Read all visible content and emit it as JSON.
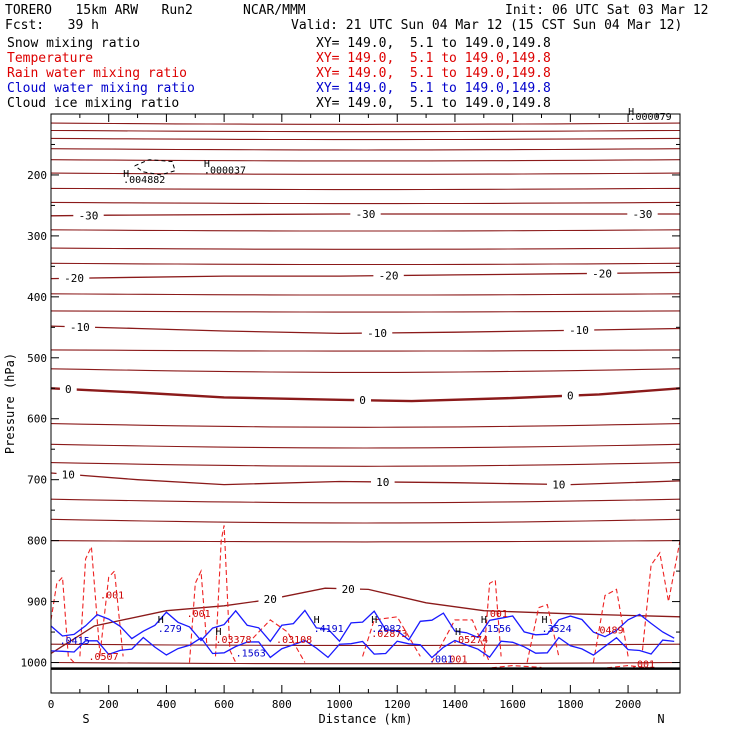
{
  "header": {
    "model": "TORERO   15km ARW   Run2",
    "org": "NCAR/MMM",
    "init": "Init: 06 UTC Sat 03 Mar 12",
    "fcst": "Fcst:   39 h",
    "valid": "Valid: 21 UTC Sun 04 Mar 12 (15 CST Sun 04 Mar 12)"
  },
  "fields": [
    {
      "name": "Snow mixing ratio",
      "xy": "XY= 149.0,  5.1 to 149.0,149.8",
      "color": "#000000"
    },
    {
      "name": "Temperature",
      "xy": "XY= 149.0,  5.1 to 149.0,149.8",
      "color": "#dd0000"
    },
    {
      "name": "Rain water mixing ratio",
      "xy": "XY= 149.0,  5.1 to 149.0,149.8",
      "color": "#dd0000"
    },
    {
      "name": "Cloud water mixing ratio",
      "xy": "XY= 149.0,  5.1 to 149.0,149.8",
      "color": "#0000cc"
    },
    {
      "name": "Cloud ice mixing ratio",
      "xy": "XY= 149.0,  5.1 to 149.0,149.8",
      "color": "#000000"
    }
  ],
  "chart_data": {
    "type": "contour",
    "xlabel": "Distance (km)",
    "ylabel": "Pressure (hPa)",
    "xlim": [
      0,
      2180
    ],
    "ylim": [
      1050,
      100
    ],
    "x_ticks": [
      0,
      200,
      400,
      600,
      800,
      1000,
      1200,
      1400,
      1600,
      1800,
      2000
    ],
    "y_ticks": [
      200,
      300,
      400,
      500,
      600,
      700,
      800,
      900,
      1000
    ],
    "end_labels": {
      "left": "S",
      "right": "N"
    },
    "temperature_contours": [
      {
        "value": -30,
        "label": "-30",
        "label_x": [
          130,
          1090,
          2050
        ],
        "p": [
          [
            0,
            267
          ],
          [
            200,
            266
          ],
          [
            600,
            265
          ],
          [
            1000,
            264
          ],
          [
            1400,
            264
          ],
          [
            1800,
            264
          ],
          [
            2180,
            264
          ]
        ]
      },
      {
        "value": -20,
        "label": "-20",
        "label_x": [
          80,
          1170,
          1910
        ],
        "p": [
          [
            0,
            370
          ],
          [
            300,
            368
          ],
          [
            600,
            366
          ],
          [
            1000,
            366
          ],
          [
            1400,
            364
          ],
          [
            1800,
            362
          ],
          [
            2180,
            360
          ]
        ]
      },
      {
        "value": -10,
        "label": "-10",
        "label_x": [
          100,
          1130,
          1830
        ],
        "p": [
          [
            0,
            448
          ],
          [
            300,
            452
          ],
          [
            600,
            456
          ],
          [
            1000,
            460
          ],
          [
            1400,
            458
          ],
          [
            1800,
            455
          ],
          [
            2180,
            452
          ]
        ]
      },
      {
        "value": 0,
        "label": "0",
        "label_x": [
          60,
          1080,
          1800
        ],
        "p": [
          [
            0,
            550
          ],
          [
            300,
            557
          ],
          [
            600,
            565
          ],
          [
            1000,
            569
          ],
          [
            1250,
            571
          ],
          [
            1600,
            566
          ],
          [
            1900,
            560
          ],
          [
            2180,
            550
          ]
        ]
      },
      {
        "value": 10,
        "label": "10",
        "label_x": [
          60,
          1150,
          1760
        ],
        "p": [
          [
            0,
            689
          ],
          [
            300,
            700
          ],
          [
            600,
            708
          ],
          [
            1000,
            703
          ],
          [
            1400,
            705
          ],
          [
            1800,
            708
          ],
          [
            2180,
            702
          ]
        ]
      },
      {
        "value": 20,
        "label": "20",
        "label_x": [
          760,
          1030
        ],
        "p": [
          [
            0,
            985
          ],
          [
            150,
            940
          ],
          [
            400,
            915
          ],
          [
            600,
            907
          ],
          [
            750,
            897
          ],
          [
            950,
            878
          ],
          [
            1100,
            880
          ],
          [
            1300,
            902
          ],
          [
            1500,
            915
          ],
          [
            1800,
            920
          ],
          [
            2180,
            925
          ]
        ]
      }
    ],
    "other_isotherm_levels_hPa": [
      115,
      127,
      140,
      157,
      175,
      197,
      222,
      245,
      290,
      320,
      345,
      395,
      423,
      487,
      518,
      608,
      642,
      672,
      732,
      765,
      800,
      970,
      1000
    ],
    "rain_water_labels": [
      ".001",
      ".001",
      ".03378",
      ".03108",
      ".02873",
      ".05274",
      ".001",
      ".001",
      ".0489",
      ".0507",
      ".001"
    ],
    "cloud_water_labels": [
      ".0415",
      ".279",
      ".1563",
      ".4191",
      ".2082",
      ".1556",
      ".3524",
      ".001"
    ],
    "cloud_ice_labels": [
      ".004882",
      ".000037",
      ".000079"
    ]
  }
}
